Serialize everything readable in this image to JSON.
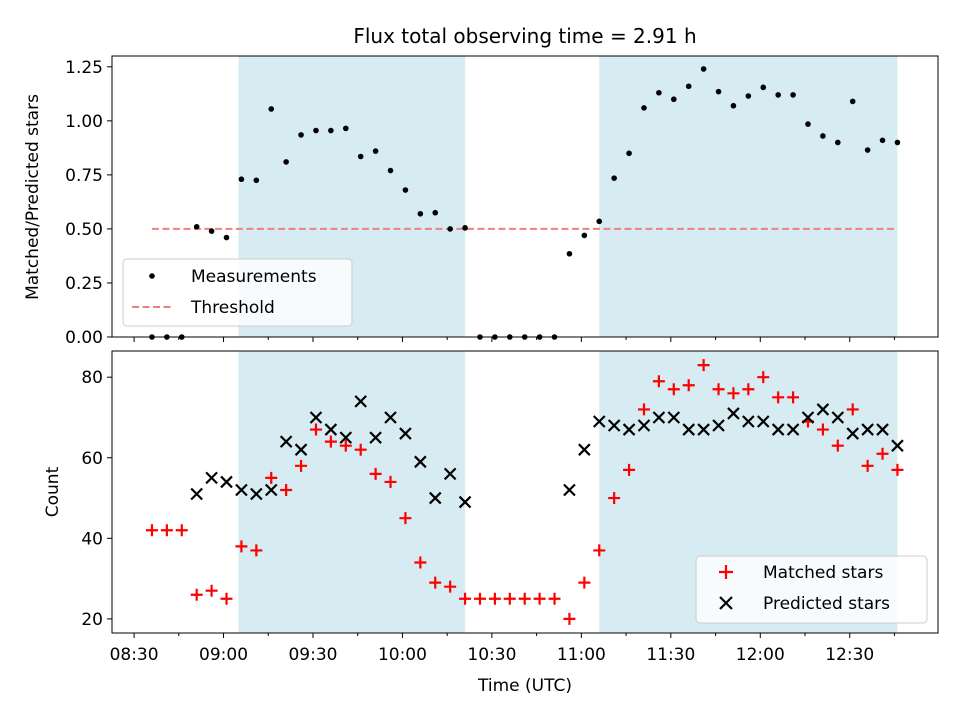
{
  "chart_data": {
    "title": "Flux total observing time = 2.91 h",
    "xlabel": "Time (UTC)",
    "x_ticks": [
      "08:30",
      "09:00",
      "09:30",
      "10:00",
      "10:30",
      "11:00",
      "11:30",
      "12:00",
      "12:30"
    ],
    "colors": {
      "shade": "#add8e6",
      "measurements": "#000000",
      "threshold": "#f08080",
      "matched": "#ff0000",
      "predicted": "#000000"
    },
    "shaded_intervals": [
      [
        "09:05",
        "10:21"
      ],
      [
        "11:06",
        "12:46"
      ]
    ],
    "panels": [
      {
        "type": "scatter",
        "ylabel": "Matched/Predicted stars",
        "ylim": [
          0,
          1.3
        ],
        "y_ticks": [
          "0.00",
          "0.25",
          "0.50",
          "0.75",
          "1.00",
          "1.25"
        ],
        "legend": [
          "Measurements",
          "Threshold"
        ],
        "legend_position": "lower-left",
        "threshold": 0.5,
        "threshold_range": [
          "08:36",
          "12:46"
        ],
        "measurements": [
          {
            "t": "08:36",
            "v": 0.0
          },
          {
            "t": "08:41",
            "v": 0.0
          },
          {
            "t": "08:46",
            "v": 0.0
          },
          {
            "t": "08:51",
            "v": 0.51
          },
          {
            "t": "08:56",
            "v": 0.49
          },
          {
            "t": "09:01",
            "v": 0.46
          },
          {
            "t": "09:06",
            "v": 0.73
          },
          {
            "t": "09:11",
            "v": 0.725
          },
          {
            "t": "09:16",
            "v": 1.055
          },
          {
            "t": "09:21",
            "v": 0.81
          },
          {
            "t": "09:26",
            "v": 0.935
          },
          {
            "t": "09:31",
            "v": 0.955
          },
          {
            "t": "09:36",
            "v": 0.955
          },
          {
            "t": "09:41",
            "v": 0.965
          },
          {
            "t": "09:46",
            "v": 0.835
          },
          {
            "t": "09:51",
            "v": 0.86
          },
          {
            "t": "09:56",
            "v": 0.77
          },
          {
            "t": "10:01",
            "v": 0.68
          },
          {
            "t": "10:06",
            "v": 0.57
          },
          {
            "t": "10:11",
            "v": 0.575
          },
          {
            "t": "10:16",
            "v": 0.5
          },
          {
            "t": "10:21",
            "v": 0.505
          },
          {
            "t": "10:26",
            "v": 0.0
          },
          {
            "t": "10:31",
            "v": 0.0
          },
          {
            "t": "10:36",
            "v": 0.0
          },
          {
            "t": "10:41",
            "v": 0.0
          },
          {
            "t": "10:46",
            "v": 0.0
          },
          {
            "t": "10:51",
            "v": 0.0
          },
          {
            "t": "10:56",
            "v": 0.385
          },
          {
            "t": "11:01",
            "v": 0.47
          },
          {
            "t": "11:06",
            "v": 0.535
          },
          {
            "t": "11:11",
            "v": 0.735
          },
          {
            "t": "11:16",
            "v": 0.85
          },
          {
            "t": "11:21",
            "v": 1.06
          },
          {
            "t": "11:26",
            "v": 1.13
          },
          {
            "t": "11:31",
            "v": 1.1
          },
          {
            "t": "11:36",
            "v": 1.16
          },
          {
            "t": "11:41",
            "v": 1.24
          },
          {
            "t": "11:46",
            "v": 1.135
          },
          {
            "t": "11:51",
            "v": 1.07
          },
          {
            "t": "11:56",
            "v": 1.115
          },
          {
            "t": "12:01",
            "v": 1.155
          },
          {
            "t": "12:06",
            "v": 1.12
          },
          {
            "t": "12:11",
            "v": 1.12
          },
          {
            "t": "12:16",
            "v": 0.985
          },
          {
            "t": "12:21",
            "v": 0.93
          },
          {
            "t": "12:26",
            "v": 0.9
          },
          {
            "t": "12:31",
            "v": 1.09
          },
          {
            "t": "12:36",
            "v": 0.865
          },
          {
            "t": "12:41",
            "v": 0.91
          },
          {
            "t": "12:46",
            "v": 0.9
          }
        ]
      },
      {
        "type": "scatter",
        "ylabel": "Count",
        "ylim": [
          16.5,
          86.5
        ],
        "y_ticks": [
          "20",
          "40",
          "60",
          "80"
        ],
        "legend": [
          "Matched stars",
          "Predicted stars"
        ],
        "legend_position": "lower-right",
        "matched": [
          {
            "t": "08:36",
            "v": 42
          },
          {
            "t": "08:41",
            "v": 42
          },
          {
            "t": "08:46",
            "v": 42
          },
          {
            "t": "08:51",
            "v": 26
          },
          {
            "t": "08:56",
            "v": 27
          },
          {
            "t": "09:01",
            "v": 25
          },
          {
            "t": "09:06",
            "v": 38
          },
          {
            "t": "09:11",
            "v": 37
          },
          {
            "t": "09:16",
            "v": 55
          },
          {
            "t": "09:21",
            "v": 52
          },
          {
            "t": "09:26",
            "v": 58
          },
          {
            "t": "09:31",
            "v": 67
          },
          {
            "t": "09:36",
            "v": 64
          },
          {
            "t": "09:41",
            "v": 63
          },
          {
            "t": "09:46",
            "v": 62
          },
          {
            "t": "09:51",
            "v": 56
          },
          {
            "t": "09:56",
            "v": 54
          },
          {
            "t": "10:01",
            "v": 45
          },
          {
            "t": "10:06",
            "v": 34
          },
          {
            "t": "10:11",
            "v": 29
          },
          {
            "t": "10:16",
            "v": 28
          },
          {
            "t": "10:21",
            "v": 25
          },
          {
            "t": "10:26",
            "v": 25
          },
          {
            "t": "10:31",
            "v": 25
          },
          {
            "t": "10:36",
            "v": 25
          },
          {
            "t": "10:41",
            "v": 25
          },
          {
            "t": "10:46",
            "v": 25
          },
          {
            "t": "10:51",
            "v": 25
          },
          {
            "t": "10:56",
            "v": 20
          },
          {
            "t": "11:01",
            "v": 29
          },
          {
            "t": "11:06",
            "v": 37
          },
          {
            "t": "11:11",
            "v": 50
          },
          {
            "t": "11:16",
            "v": 57
          },
          {
            "t": "11:21",
            "v": 72
          },
          {
            "t": "11:26",
            "v": 79
          },
          {
            "t": "11:31",
            "v": 77
          },
          {
            "t": "11:36",
            "v": 78
          },
          {
            "t": "11:41",
            "v": 83
          },
          {
            "t": "11:46",
            "v": 77
          },
          {
            "t": "11:51",
            "v": 76
          },
          {
            "t": "11:56",
            "v": 77
          },
          {
            "t": "12:01",
            "v": 80
          },
          {
            "t": "12:06",
            "v": 75
          },
          {
            "t": "12:11",
            "v": 75
          },
          {
            "t": "12:16",
            "v": 69
          },
          {
            "t": "12:21",
            "v": 67
          },
          {
            "t": "12:26",
            "v": 63
          },
          {
            "t": "12:31",
            "v": 72
          },
          {
            "t": "12:36",
            "v": 58
          },
          {
            "t": "12:41",
            "v": 61
          },
          {
            "t": "12:46",
            "v": 57
          }
        ],
        "predicted": [
          {
            "t": "08:51",
            "v": 51
          },
          {
            "t": "08:56",
            "v": 55
          },
          {
            "t": "09:01",
            "v": 54
          },
          {
            "t": "09:06",
            "v": 52
          },
          {
            "t": "09:11",
            "v": 51
          },
          {
            "t": "09:16",
            "v": 52
          },
          {
            "t": "09:21",
            "v": 64
          },
          {
            "t": "09:26",
            "v": 62
          },
          {
            "t": "09:31",
            "v": 70
          },
          {
            "t": "09:36",
            "v": 67
          },
          {
            "t": "09:41",
            "v": 65
          },
          {
            "t": "09:46",
            "v": 74
          },
          {
            "t": "09:51",
            "v": 65
          },
          {
            "t": "09:56",
            "v": 70
          },
          {
            "t": "10:01",
            "v": 66
          },
          {
            "t": "10:06",
            "v": 59
          },
          {
            "t": "10:11",
            "v": 50
          },
          {
            "t": "10:16",
            "v": 56
          },
          {
            "t": "10:21",
            "v": 49
          },
          {
            "t": "10:56",
            "v": 52
          },
          {
            "t": "11:01",
            "v": 62
          },
          {
            "t": "11:06",
            "v": 69
          },
          {
            "t": "11:11",
            "v": 68
          },
          {
            "t": "11:16",
            "v": 67
          },
          {
            "t": "11:21",
            "v": 68
          },
          {
            "t": "11:26",
            "v": 70
          },
          {
            "t": "11:31",
            "v": 70
          },
          {
            "t": "11:36",
            "v": 67
          },
          {
            "t": "11:41",
            "v": 67
          },
          {
            "t": "11:46",
            "v": 68
          },
          {
            "t": "11:51",
            "v": 71
          },
          {
            "t": "11:56",
            "v": 69
          },
          {
            "t": "12:01",
            "v": 69
          },
          {
            "t": "12:06",
            "v": 67
          },
          {
            "t": "12:11",
            "v": 67
          },
          {
            "t": "12:16",
            "v": 70
          },
          {
            "t": "12:21",
            "v": 72
          },
          {
            "t": "12:26",
            "v": 70
          },
          {
            "t": "12:31",
            "v": 66
          },
          {
            "t": "12:36",
            "v": 67
          },
          {
            "t": "12:41",
            "v": 67
          },
          {
            "t": "12:46",
            "v": 63
          }
        ]
      }
    ]
  }
}
